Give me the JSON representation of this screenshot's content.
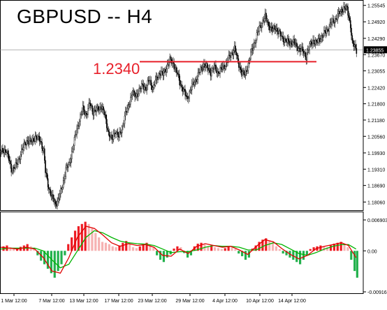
{
  "chart_data": {
    "type": "candlestick",
    "title": "GBPUSD -- H4",
    "symbol": "GBPUSD",
    "timeframe": "H4",
    "price_axis": {
      "range": [
        1.1775,
        1.2575
      ],
      "ticks": [
        "1.25545",
        "1.24920",
        "1.24290",
        "1.23670",
        "1.23055",
        "1.22420",
        "1.21800",
        "1.21180",
        "1.20560",
        "1.19930",
        "1.19310",
        "1.18690",
        "1.18060"
      ],
      "current_price": "1.23855"
    },
    "annotation": {
      "label": "1.2340",
      "value": 1.234,
      "color": "#e8202a"
    },
    "time_axis": {
      "labels": [
        "1 Mar 12:00",
        "7 Mar 12:00",
        "13 Mar 12:00",
        "17 Mar 12:00",
        "23 Mar 12:00",
        "29 Mar 12:00",
        "4 Apr 12:00",
        "10 Apr 12:00",
        "14 Apr 12:00"
      ]
    },
    "close_path": [
      [
        0,
        1.1995
      ],
      [
        6,
        1.2005
      ],
      [
        12,
        1.193
      ],
      [
        18,
        1.1945
      ],
      [
        24,
        1.2
      ],
      [
        30,
        1.204
      ],
      [
        36,
        1.2035
      ],
      [
        40,
        1.2055
      ],
      [
        46,
        1.204
      ],
      [
        50,
        1.2
      ],
      [
        52,
        1.192
      ],
      [
        56,
        1.186
      ],
      [
        60,
        1.182
      ],
      [
        64,
        1.18
      ],
      [
        68,
        1.182
      ],
      [
        72,
        1.187
      ],
      [
        76,
        1.193
      ],
      [
        80,
        1.195
      ],
      [
        84,
        1.201
      ],
      [
        88,
        1.207
      ],
      [
        92,
        1.212
      ],
      [
        96,
        1.216
      ],
      [
        100,
        1.214
      ],
      [
        104,
        1.218
      ],
      [
        108,
        1.215
      ],
      [
        114,
        1.216
      ],
      [
        118,
        1.217
      ],
      [
        122,
        1.213
      ],
      [
        126,
        1.207
      ],
      [
        130,
        1.204
      ],
      [
        134,
        1.208
      ],
      [
        138,
        1.205
      ],
      [
        142,
        1.209
      ],
      [
        146,
        1.214
      ],
      [
        150,
        1.218
      ],
      [
        154,
        1.222
      ],
      [
        158,
        1.221
      ],
      [
        162,
        1.223
      ],
      [
        166,
        1.225
      ],
      [
        170,
        1.224
      ],
      [
        174,
        1.227
      ],
      [
        178,
        1.224
      ],
      [
        182,
        1.227
      ],
      [
        186,
        1.23
      ],
      [
        190,
        1.229
      ],
      [
        194,
        1.232
      ],
      [
        198,
        1.2345
      ],
      [
        202,
        1.2335
      ],
      [
        206,
        1.23
      ],
      [
        210,
        1.226
      ],
      [
        214,
        1.223
      ],
      [
        218,
        1.22
      ],
      [
        222,
        1.223
      ],
      [
        226,
        1.226
      ],
      [
        230,
        1.228
      ],
      [
        234,
        1.231
      ],
      [
        238,
        1.233
      ],
      [
        242,
        1.2315
      ],
      [
        246,
        1.23
      ],
      [
        250,
        1.232
      ],
      [
        254,
        1.23
      ],
      [
        258,
        1.231
      ],
      [
        262,
        1.2325
      ],
      [
        266,
        1.2345
      ],
      [
        270,
        1.237
      ],
      [
        274,
        1.239
      ],
      [
        278,
        1.234
      ],
      [
        282,
        1.23
      ],
      [
        286,
        1.229
      ],
      [
        290,
        1.233
      ],
      [
        294,
        1.238
      ],
      [
        298,
        1.242
      ],
      [
        302,
        1.246
      ],
      [
        306,
        1.249
      ],
      [
        310,
        1.251
      ],
      [
        314,
        1.248
      ],
      [
        318,
        1.246
      ],
      [
        322,
        1.247
      ],
      [
        326,
        1.245
      ],
      [
        330,
        1.243
      ],
      [
        334,
        1.242
      ],
      [
        338,
        1.241
      ],
      [
        342,
        1.242
      ],
      [
        346,
        1.24
      ],
      [
        350,
        1.239
      ],
      [
        354,
        1.238
      ],
      [
        358,
        1.236
      ],
      [
        362,
        1.24
      ],
      [
        366,
        1.242
      ],
      [
        370,
        1.241
      ],
      [
        374,
        1.243
      ],
      [
        378,
        1.244
      ],
      [
        382,
        1.246
      ],
      [
        386,
        1.248
      ],
      [
        390,
        1.2495
      ],
      [
        394,
        1.251
      ],
      [
        398,
        1.253
      ],
      [
        402,
        1.2545
      ],
      [
        406,
        1.254
      ],
      [
        410,
        1.248
      ],
      [
        412,
        1.241
      ],
      [
        414,
        1.24
      ],
      [
        417,
        1.2385
      ]
    ],
    "oscillator": {
      "top_label": "0.006903",
      "zero_label": "0.00",
      "bottom_label": "-0.009162",
      "range": [
        -0.009162,
        0.006903
      ],
      "histogram": [
        [
          2,
          0.001
        ],
        [
          6,
          0.0012
        ],
        [
          10,
          0.0008
        ],
        [
          14,
          0.0004
        ],
        [
          18,
          0.0006
        ],
        [
          22,
          0.0009
        ],
        [
          26,
          0.0012
        ],
        [
          30,
          0.0015
        ],
        [
          34,
          0.001
        ],
        [
          38,
          0.0004
        ],
        [
          42,
          -0.001
        ],
        [
          46,
          -0.0022
        ],
        [
          50,
          -0.003
        ],
        [
          54,
          -0.004
        ],
        [
          58,
          -0.005
        ],
        [
          62,
          -0.006
        ],
        [
          66,
          -0.0045
        ],
        [
          70,
          -0.003
        ],
        [
          74,
          -0.001
        ],
        [
          78,
          0.0015
        ],
        [
          82,
          0.003
        ],
        [
          86,
          0.0045
        ],
        [
          90,
          0.0055
        ],
        [
          94,
          0.006
        ],
        [
          98,
          0.0065
        ],
        [
          102,
          0.006
        ],
        [
          106,
          0.005
        ],
        [
          110,
          0.004
        ],
        [
          114,
          0.003
        ],
        [
          118,
          0.002
        ],
        [
          122,
          0.0018
        ],
        [
          126,
          0.0015
        ],
        [
          130,
          0.001
        ],
        [
          134,
          0.0008
        ],
        [
          138,
          0.0012
        ],
        [
          142,
          0.0018
        ],
        [
          146,
          0.0022
        ],
        [
          150,
          0.0015
        ],
        [
          154,
          0.0008
        ],
        [
          158,
          0.0006
        ],
        [
          162,
          0.001
        ],
        [
          166,
          0.0016
        ],
        [
          170,
          0.0018
        ],
        [
          174,
          0.0014
        ],
        [
          178,
          0.0008
        ],
        [
          182,
          -0.001
        ],
        [
          186,
          -0.002
        ],
        [
          190,
          -0.0025
        ],
        [
          194,
          -0.0015
        ],
        [
          198,
          -0.0008
        ],
        [
          202,
          0.0005
        ],
        [
          206,
          0.001
        ],
        [
          210,
          0.0008
        ],
        [
          214,
          -0.0005
        ],
        [
          218,
          -0.0015
        ],
        [
          222,
          -0.001
        ],
        [
          226,
          0.001
        ],
        [
          230,
          0.0016
        ],
        [
          234,
          0.0018
        ],
        [
          238,
          0.0014
        ],
        [
          242,
          0.001
        ],
        [
          246,
          0.0012
        ],
        [
          250,
          0.0008
        ],
        [
          254,
          0.0006
        ],
        [
          258,
          0.0004
        ],
        [
          262,
          0.0006
        ],
        [
          266,
          0.001
        ],
        [
          270,
          0.0008
        ],
        [
          274,
          0.0004
        ],
        [
          278,
          -0.0006
        ],
        [
          282,
          -0.0012
        ],
        [
          286,
          -0.002
        ],
        [
          290,
          -0.0015
        ],
        [
          294,
          0.0005
        ],
        [
          298,
          0.0012
        ],
        [
          302,
          0.002
        ],
        [
          306,
          0.0025
        ],
        [
          310,
          0.0028
        ],
        [
          314,
          0.0022
        ],
        [
          318,
          0.0018
        ],
        [
          322,
          0.001
        ],
        [
          326,
          0.0004
        ],
        [
          330,
          -0.0006
        ],
        [
          334,
          -0.001
        ],
        [
          338,
          -0.0015
        ],
        [
          342,
          -0.002
        ],
        [
          346,
          -0.0025
        ],
        [
          350,
          -0.003
        ],
        [
          354,
          -0.002
        ],
        [
          358,
          -0.001
        ],
        [
          362,
          0.0004
        ],
        [
          366,
          0.0008
        ],
        [
          370,
          0.001
        ],
        [
          374,
          0.0012
        ],
        [
          378,
          0.001
        ],
        [
          382,
          0.0008
        ],
        [
          386,
          0.0012
        ],
        [
          390,
          0.0016
        ],
        [
          394,
          0.0018
        ],
        [
          398,
          0.002
        ],
        [
          402,
          0.0016
        ],
        [
          406,
          0.0008
        ],
        [
          410,
          -0.002
        ],
        [
          414,
          -0.0045
        ],
        [
          417,
          -0.006
        ]
      ],
      "main_line": [
        [
          0,
          0.0008
        ],
        [
          10,
          0.0006
        ],
        [
          20,
          0.0004
        ],
        [
          30,
          0.0008
        ],
        [
          40,
          0.0004
        ],
        [
          50,
          -0.0015
        ],
        [
          60,
          -0.0045
        ],
        [
          70,
          -0.005
        ],
        [
          80,
          -0.0015
        ],
        [
          90,
          0.003
        ],
        [
          100,
          0.0055
        ],
        [
          110,
          0.005
        ],
        [
          120,
          0.0035
        ],
        [
          130,
          0.0018
        ],
        [
          140,
          0.001
        ],
        [
          150,
          0.0016
        ],
        [
          160,
          0.0012
        ],
        [
          170,
          0.0014
        ],
        [
          180,
          0.0008
        ],
        [
          190,
          -0.001
        ],
        [
          200,
          -0.0012
        ],
        [
          210,
          0.0004
        ],
        [
          220,
          -0.0006
        ],
        [
          230,
          0.001
        ],
        [
          240,
          0.0016
        ],
        [
          250,
          0.0012
        ],
        [
          260,
          0.0008
        ],
        [
          270,
          0.001
        ],
        [
          280,
          0.0002
        ],
        [
          290,
          -0.0008
        ],
        [
          300,
          0.001
        ],
        [
          310,
          0.0025
        ],
        [
          320,
          0.002
        ],
        [
          330,
          0.0005
        ],
        [
          340,
          -0.0008
        ],
        [
          350,
          -0.0018
        ],
        [
          360,
          -0.001
        ],
        [
          370,
          0.0005
        ],
        [
          380,
          0.001
        ],
        [
          390,
          0.0014
        ],
        [
          400,
          0.0018
        ],
        [
          408,
          0.0012
        ],
        [
          417,
          -0.0015
        ]
      ],
      "signal_line": [
        [
          0,
          0.0004
        ],
        [
          10,
          0.0006
        ],
        [
          20,
          0.0006
        ],
        [
          30,
          0.0006
        ],
        [
          40,
          0.0006
        ],
        [
          50,
          0.0
        ],
        [
          60,
          -0.002
        ],
        [
          70,
          -0.0038
        ],
        [
          80,
          -0.003
        ],
        [
          90,
          0.0
        ],
        [
          100,
          0.003
        ],
        [
          110,
          0.0045
        ],
        [
          120,
          0.004
        ],
        [
          130,
          0.003
        ],
        [
          140,
          0.0022
        ],
        [
          150,
          0.0018
        ],
        [
          160,
          0.0016
        ],
        [
          170,
          0.0015
        ],
        [
          180,
          0.0012
        ],
        [
          190,
          0.0004
        ],
        [
          200,
          -0.0004
        ],
        [
          210,
          -0.0002
        ],
        [
          220,
          -0.0002
        ],
        [
          230,
          0.0002
        ],
        [
          240,
          0.0008
        ],
        [
          250,
          0.0012
        ],
        [
          260,
          0.001
        ],
        [
          270,
          0.001
        ],
        [
          280,
          0.0008
        ],
        [
          290,
          0.0002
        ],
        [
          300,
          0.0002
        ],
        [
          310,
          0.0012
        ],
        [
          320,
          0.0018
        ],
        [
          330,
          0.0014
        ],
        [
          340,
          0.0004
        ],
        [
          350,
          -0.0006
        ],
        [
          360,
          -0.001
        ],
        [
          370,
          -0.0004
        ],
        [
          380,
          0.0004
        ],
        [
          390,
          0.001
        ],
        [
          400,
          0.0014
        ],
        [
          408,
          0.0014
        ],
        [
          417,
          0.0004
        ]
      ]
    },
    "colors": {
      "up_candle": "#ffffff",
      "down_candle": "#000000",
      "annotation": "#e8202a",
      "histogram_up": "#ee1c24",
      "histogram_up_fading": "#f6b2b2",
      "histogram_down": "#22b14c",
      "main_line": "#e00000",
      "signal_line": "#00b400"
    }
  }
}
